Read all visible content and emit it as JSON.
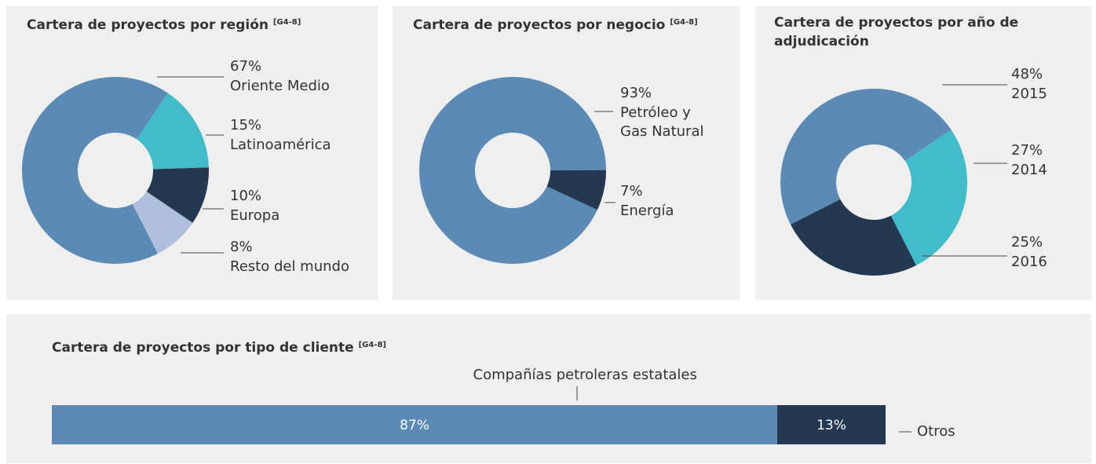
{
  "chart_data": [
    {
      "type": "donut",
      "title": "Cartera de proyectos por región",
      "title_ref": "[G4-8]",
      "categories": [
        "Oriente Medio",
        "Latinoamérica",
        "Europa",
        "Resto del mundo"
      ],
      "values": [
        67,
        15,
        10,
        8
      ],
      "value_labels": [
        "67%",
        "15%",
        "10%",
        "8%"
      ],
      "colors": [
        "#5b8ab5",
        "#43bcc9",
        "#253852",
        "#b0c0dc"
      ]
    },
    {
      "type": "donut",
      "title": "Cartera de proyectos por negocio",
      "title_ref": "[G4-8]",
      "categories": [
        "Petróleo y Gas Natural",
        "Energía"
      ],
      "values": [
        93,
        7
      ],
      "value_labels": [
        "93%",
        "7%"
      ],
      "colors": [
        "#5b8ab5",
        "#253852"
      ]
    },
    {
      "type": "donut",
      "title": "Cartera de proyectos por año de adjudicación",
      "categories": [
        "2015",
        "2014",
        "2016"
      ],
      "values": [
        48,
        27,
        25
      ],
      "value_labels": [
        "48%",
        "27%",
        "25%"
      ],
      "colors": [
        "#5b8ab5",
        "#43bcc9",
        "#253852"
      ]
    },
    {
      "type": "stacked_bar",
      "title": "Cartera de proyectos por tipo de cliente",
      "title_ref": "[G4-8]",
      "categories": [
        "Compañías petroleras estatales",
        "Otros"
      ],
      "values": [
        87,
        13
      ],
      "value_labels": [
        "87%",
        "13%"
      ],
      "colors": [
        "#5b8ab5",
        "#253852"
      ]
    }
  ]
}
